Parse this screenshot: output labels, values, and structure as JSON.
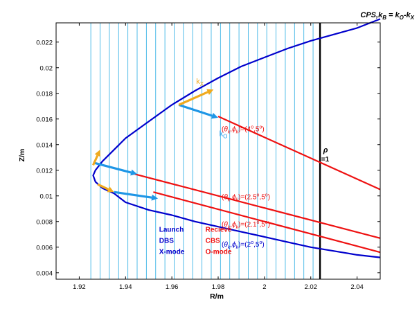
{
  "chart_data": {
    "type": "line",
    "title": "CPS,k_B = k_O-k_X",
    "title_parts": {
      "base": "CPS,k",
      "sub1": "B",
      "eq": " = k",
      "sub2": "O",
      "dash": "-k",
      "sub3": "X"
    },
    "xlabel": "R/m",
    "ylabel": "Z/m",
    "xlim": [
      1.91,
      2.05
    ],
    "ylim": [
      0.0035,
      0.0235
    ],
    "xticks": [
      {
        "value": 1.92,
        "label": "1.92"
      },
      {
        "value": 1.94,
        "label": "1.94"
      },
      {
        "value": 1.96,
        "label": "1.96"
      },
      {
        "value": 1.98,
        "label": "1.98"
      },
      {
        "value": 2.0,
        "label": "2"
      },
      {
        "value": 2.02,
        "label": "2.02"
      },
      {
        "value": 2.04,
        "label": "2.04"
      }
    ],
    "yticks": [
      {
        "value": 0.004,
        "label": "0.004"
      },
      {
        "value": 0.006,
        "label": "0.006"
      },
      {
        "value": 0.008,
        "label": "0.008"
      },
      {
        "value": 0.01,
        "label": "0.01"
      },
      {
        "value": 0.012,
        "label": "0.012"
      },
      {
        "value": 0.014,
        "label": "0.014"
      },
      {
        "value": 0.016,
        "label": "0.016"
      },
      {
        "value": 0.018,
        "label": "0.018"
      },
      {
        "value": 0.02,
        "label": "0.02"
      },
      {
        "value": 0.022,
        "label": "0.022"
      }
    ],
    "grid": false,
    "colors": {
      "launch": "#0000cc",
      "recieve": "#ee1111",
      "flux": "#3cb4e6",
      "kx": "#f0aa1e",
      "ko": "#1e96e6",
      "rho": "#000000"
    },
    "flux_surfaces": {
      "r_values": [
        1.925,
        1.929,
        1.933,
        1.937,
        1.941,
        1.945,
        1.949,
        1.953,
        1.957,
        1.961,
        1.965,
        1.969,
        1.973,
        1.977,
        1.981,
        1.985,
        1.989,
        1.993,
        1.997,
        2.001,
        2.005,
        2.009,
        2.013,
        2.017,
        2.021
      ],
      "z_from": 0.0035,
      "z_to": 0.0235
    },
    "rho_surface": {
      "r": 2.024,
      "label_top": "ρ",
      "label_bottom": "=1",
      "label_at": [
        2.0245,
        0.0127
      ]
    },
    "launch_ray": {
      "name": "Launch DBS X-mode",
      "x": [
        2.05,
        2.04,
        2.03,
        2.02,
        2.01,
        2.0,
        1.99,
        1.98,
        1.97,
        1.96,
        1.95,
        1.94,
        1.935,
        1.93,
        1.927,
        1.926,
        1.927,
        1.93,
        1.935,
        1.94,
        1.95,
        1.96,
        1.97,
        1.98,
        1.99,
        2.0,
        2.01,
        2.02,
        2.03,
        2.04,
        2.05
      ],
      "y": [
        0.0238,
        0.0231,
        0.0226,
        0.0221,
        0.0215,
        0.0208,
        0.0201,
        0.0192,
        0.0182,
        0.0171,
        0.0158,
        0.0145,
        0.0136,
        0.0127,
        0.012,
        0.0116,
        0.0111,
        0.0106,
        0.0102,
        0.0095,
        0.0089,
        0.0085,
        0.008,
        0.0076,
        0.0072,
        0.0068,
        0.0064,
        0.006,
        0.0057,
        0.0054,
        0.0052
      ]
    },
    "recieve_rays": [
      {
        "label": "(θk,ϕk)=(4°,5°)",
        "x": [
          1.98,
          2.05
        ],
        "y": [
          0.0162,
          0.0105
        ],
        "label_at": [
          1.9815,
          0.01505
        ]
      },
      {
        "label": "(θk,ϕk)=(2.5°,5°)",
        "x": [
          1.944,
          2.05
        ],
        "y": [
          0.0117,
          0.0067
        ],
        "label_at": [
          1.9815,
          0.00975
        ]
      },
      {
        "label": "(θk,ϕk)=(2.1°,5°)",
        "x": [
          1.952,
          2.05
        ],
        "y": [
          0.0103,
          0.0056
        ],
        "label_at": [
          1.9815,
          0.0076
        ]
      },
      {
        "label": "(θk,ϕk)=(2°,5°)",
        "x": [],
        "y": [],
        "label_at": [
          1.9815,
          0.00605
        ]
      }
    ],
    "kx_arrows": [
      {
        "x": [
          1.963,
          1.978
        ],
        "y": [
          0.0171,
          0.0183
        ]
      },
      {
        "x": [
          1.926,
          1.929
        ],
        "y": [
          0.0124,
          0.0136
        ]
      },
      {
        "x": [
          1.928,
          1.935
        ],
        "y": [
          0.0109,
          0.0103
        ]
      }
    ],
    "ko_arrows": [
      {
        "x": [
          1.963,
          1.98
        ],
        "y": [
          0.0171,
          0.0161
        ]
      },
      {
        "x": [
          1.926,
          1.945
        ],
        "y": [
          0.0126,
          0.0117
        ]
      },
      {
        "x": [
          1.935,
          1.954
        ],
        "y": [
          0.0103,
          0.0098
        ]
      }
    ],
    "kx_label": {
      "base": "k",
      "sub": "X",
      "at": [
        1.9705,
        0.01875
      ]
    },
    "ko_label": {
      "base": "k",
      "sub": "O",
      "at": [
        1.9805,
        0.01465
      ]
    },
    "annotations": {
      "launch": [
        "Launch",
        "DBS",
        "X-mode"
      ],
      "recieve": [
        "Recieve",
        "CBS",
        "O-mode"
      ],
      "launch_at": [
        1.9545,
        0.0072
      ],
      "recieve_at": [
        1.9745,
        0.0072
      ]
    }
  }
}
